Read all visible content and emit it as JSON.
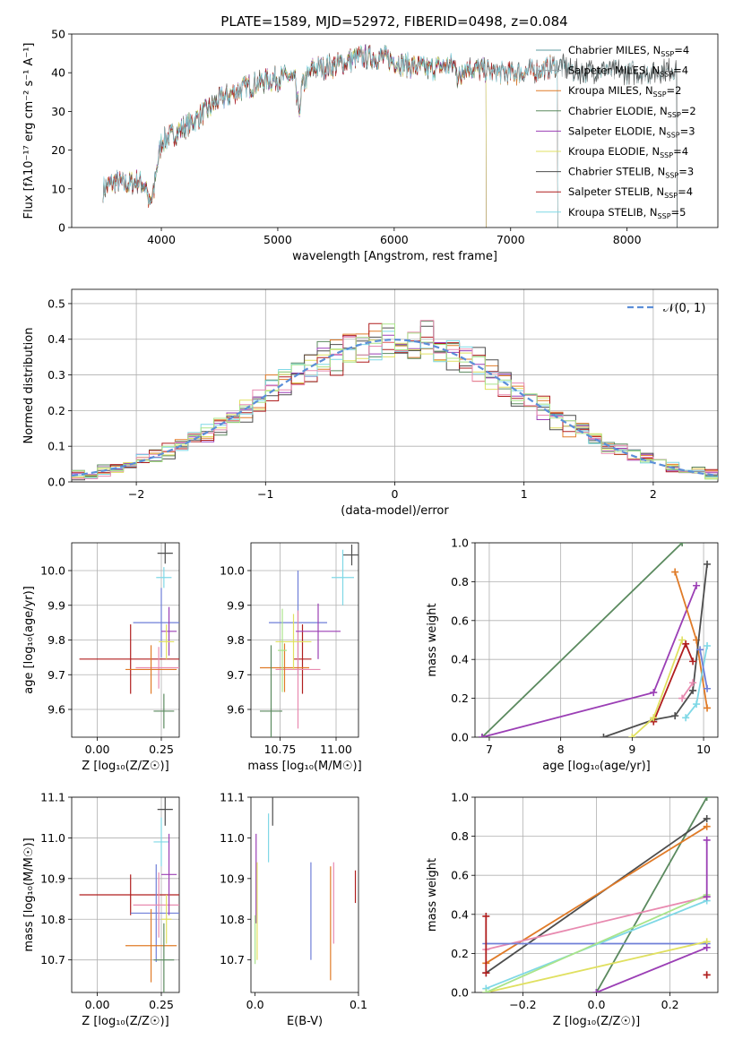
{
  "figure_title": "PLATE=1589, MJD=52972, FIBERID=0498, z=0.084",
  "colors": [
    "#5f9ea0",
    "#9aa3a6",
    "#e07b28",
    "#5b8a5f",
    "#9b3fb5",
    "#e0e060",
    "#4d4d4d",
    "#b01e1e",
    "#7fd8e6"
  ],
  "chart_data": [
    {
      "id": "spectrum",
      "type": "line",
      "title": "PLATE=1589, MJD=52972, FIBERID=0498, z=0.084",
      "xlabel": "wavelength [Angstrom, rest frame]",
      "ylabel": "Flux [fλ10⁻¹⁷ erg cm⁻² s⁻¹ A⁻¹]",
      "xlim": [
        3230,
        8780
      ],
      "ylim": [
        0,
        50
      ],
      "xticks": [
        4000,
        5000,
        6000,
        7000,
        8000
      ],
      "yticks": [
        0,
        10,
        20,
        30,
        40,
        50
      ],
      "grid": false,
      "legend_position": "top-right",
      "continuum_x": [
        3500,
        3600,
        3700,
        3800,
        3900,
        3950,
        4000,
        4100,
        4300,
        4500,
        4700,
        4900,
        5100,
        5200,
        5300,
        5500,
        5700,
        5900,
        6000,
        6100,
        6300,
        6500,
        6700,
        6900,
        7100,
        7300,
        7400,
        7600,
        7800,
        8000,
        8200,
        8400
      ],
      "continuum_y": [
        10,
        12,
        11,
        12,
        10,
        14,
        22,
        24,
        28,
        33,
        36,
        38,
        39,
        36,
        41,
        42,
        44,
        44,
        43,
        42,
        41,
        42,
        41,
        40,
        40,
        41,
        42,
        40,
        41,
        40,
        40,
        41
      ],
      "series": [
        {
          "name": "Chabrier MILES, N",
          "sub": "SSP",
          "suffix": "=4",
          "x_end": 8430
        },
        {
          "name": "Salpeter MILES, N",
          "sub": "SSP",
          "suffix": "=4",
          "x_end": 8430
        },
        {
          "name": "Kroupa MILES, N",
          "sub": "SSP",
          "suffix": "=2",
          "x_end": 7405
        },
        {
          "name": "Chabrier ELODIE, N",
          "sub": "SSP",
          "suffix": "=2",
          "x_end": 6790
        },
        {
          "name": "Salpeter ELODIE, N",
          "sub": "SSP",
          "suffix": "=3",
          "x_end": 6790
        },
        {
          "name": "Kroupa ELODIE, N",
          "sub": "SSP",
          "suffix": "=4",
          "x_end": 6790
        },
        {
          "name": "Chabrier STELIB, N",
          "sub": "SSP",
          "suffix": "=3",
          "x_end": 8430
        },
        {
          "name": "Salpeter STELIB, N",
          "sub": "SSP",
          "suffix": "=4",
          "x_end": 7405
        },
        {
          "name": "Kroupa STELIB, N",
          "sub": "SSP",
          "suffix": "=5",
          "x_end": 7405
        }
      ]
    },
    {
      "id": "residuals",
      "type": "histogram",
      "xlabel": "(data-model)/error",
      "ylabel": "Normed distribution",
      "xlim": [
        -2.5,
        2.5
      ],
      "ylim": [
        0,
        0.54
      ],
      "xticks": [
        -2,
        -1,
        0,
        1,
        2
      ],
      "xtick_labels": [
        "−2",
        "−1",
        "0",
        "1",
        "2"
      ],
      "yticks": [
        0.0,
        0.1,
        0.2,
        0.3,
        0.4,
        0.5
      ],
      "ytick_labels": [
        "0.0",
        "0.1",
        "0.2",
        "0.3",
        "0.4",
        "0.5"
      ],
      "grid": true,
      "bin_width": 0.1,
      "reference_curve": "N(0,1)",
      "legend_position": "top-right",
      "series_colors": [
        "#e07b28",
        "#5b8a5f",
        "#9b3fb5",
        "#e0e060",
        "#4d4d4d",
        "#b01e1e",
        "#7fd8e6",
        "#e88ab0",
        "#a9e48a"
      ]
    },
    {
      "id": "age_vs_Z",
      "type": "errorbar",
      "xlabel": "Z [log₁₀(Z/Z☉)]",
      "ylabel": "age  [log₁₀(age/yr)]",
      "xlim": [
        -0.1,
        0.32
      ],
      "ylim": [
        9.52,
        10.08
      ],
      "xticks": [
        0.0,
        0.25
      ],
      "xtick_labels": [
        "0.00",
        "0.25"
      ],
      "yticks": [
        9.6,
        9.7,
        9.8,
        9.9,
        10.0
      ],
      "ytick_labels": [
        "9.6",
        "9.7",
        "9.8",
        "9.9",
        "10.0"
      ],
      "grid": true,
      "points": [
        {
          "x": 0.265,
          "y": 10.05,
          "xerr": 0.03,
          "yerr": 0.03,
          "color": "#4d4d4d"
        },
        {
          "x": 0.26,
          "y": 9.98,
          "xerr": 0.03,
          "yerr": 0.03,
          "color": "#7fd8e6"
        },
        {
          "x": 0.25,
          "y": 9.85,
          "xerr": 0.11,
          "yerr": 0.1,
          "color": "#6f7fd8"
        },
        {
          "x": 0.13,
          "y": 9.745,
          "xerr": 0.2,
          "yerr": 0.1,
          "color": "#b01e1e"
        },
        {
          "x": 0.24,
          "y": 9.72,
          "xerr": 0.09,
          "yerr": 0.06,
          "color": "#e88ab0"
        },
        {
          "x": 0.21,
          "y": 9.715,
          "xerr": 0.1,
          "yerr": 0.07,
          "color": "#e07b28"
        },
        {
          "x": 0.28,
          "y": 9.825,
          "xerr": 0.03,
          "yerr": 0.07,
          "color": "#9b3fb5"
        },
        {
          "x": 0.27,
          "y": 9.795,
          "xerr": 0.03,
          "yerr": 0.05,
          "color": "#e0e060"
        },
        {
          "x": 0.26,
          "y": 9.595,
          "xerr": 0.04,
          "yerr": 0.05,
          "color": "#5b8a5f"
        }
      ]
    },
    {
      "id": "age_vs_mass",
      "type": "errorbar",
      "xlabel": "mass [log₁₀(M/M☉)]",
      "ylabel": "",
      "xlim": [
        10.62,
        11.1
      ],
      "ylim": [
        9.52,
        10.08
      ],
      "xticks": [
        10.75,
        11.0
      ],
      "xtick_labels": [
        "10.75",
        "11.00"
      ],
      "yticks": [
        9.6,
        9.7,
        9.8,
        9.9,
        10.0
      ],
      "ytick_labels": [
        "9.6",
        "9.7",
        "9.8",
        "9.9",
        "10.0"
      ],
      "grid": true,
      "points": [
        {
          "x": 11.07,
          "y": 10.045,
          "xerr": 0.04,
          "yerr": 0.03,
          "color": "#4d4d4d"
        },
        {
          "x": 11.03,
          "y": 9.98,
          "xerr": 0.05,
          "yerr": 0.08,
          "color": "#7fd8e6"
        },
        {
          "x": 10.83,
          "y": 9.85,
          "xerr": 0.13,
          "yerr": 0.15,
          "color": "#6f7fd8"
        },
        {
          "x": 10.85,
          "y": 9.745,
          "xerr": 0.04,
          "yerr": 0.1,
          "color": "#b01e1e"
        },
        {
          "x": 10.83,
          "y": 9.715,
          "xerr": 0.1,
          "yerr": 0.17,
          "color": "#e88ab0"
        },
        {
          "x": 10.77,
          "y": 9.72,
          "xerr": 0.11,
          "yerr": 0.07,
          "color": "#e07b28"
        },
        {
          "x": 10.92,
          "y": 9.825,
          "xerr": 0.1,
          "yerr": 0.08,
          "color": "#9b3fb5"
        },
        {
          "x": 10.81,
          "y": 9.795,
          "xerr": 0.08,
          "yerr": 0.08,
          "color": "#e0e060"
        },
        {
          "x": 10.71,
          "y": 9.595,
          "xerr": 0.05,
          "yerr": 0.19,
          "color": "#5b8a5f"
        },
        {
          "x": 10.76,
          "y": 9.77,
          "xerr": 0.02,
          "yerr": 0.12,
          "color": "#a9e48a"
        }
      ]
    },
    {
      "id": "weight_vs_age",
      "type": "line",
      "xlabel": "age  [log₁₀(age/yr)]",
      "ylabel": "mass weight",
      "xlim": [
        6.8,
        10.2
      ],
      "ylim": [
        0,
        1.0
      ],
      "xticks": [
        7,
        8,
        9,
        10
      ],
      "xtick_labels": [
        "7",
        "8",
        "9",
        "10"
      ],
      "yticks": [
        0.0,
        0.2,
        0.4,
        0.6,
        0.8,
        1.0
      ],
      "ytick_labels": [
        "0.0",
        "0.2",
        "0.4",
        "0.6",
        "0.8",
        "1.0"
      ],
      "grid": true,
      "series": [
        {
          "color": "#5b8a5f",
          "x": [
            6.9,
            9.7
          ],
          "y": [
            0.0,
            1.0
          ]
        },
        {
          "color": "#9b3fb5",
          "x": [
            6.9,
            9.3,
            9.9
          ],
          "y": [
            0.0,
            0.23,
            0.78
          ]
        },
        {
          "color": "#e07b28",
          "x": [
            9.6,
            9.9,
            10.05
          ],
          "y": [
            0.85,
            0.5,
            0.15
          ]
        },
        {
          "color": "#4d4d4d",
          "x": [
            8.6,
            9.3,
            9.6,
            9.85,
            10.05
          ],
          "y": [
            0.0,
            0.09,
            0.11,
            0.24,
            0.89
          ]
        },
        {
          "color": "#b01e1e",
          "x": [
            9.3,
            9.75,
            9.85
          ],
          "y": [
            0.08,
            0.48,
            0.39
          ]
        },
        {
          "color": "#e0e060",
          "x": [
            9.0,
            9.3,
            9.7
          ],
          "y": [
            0.0,
            0.1,
            0.5
          ]
        },
        {
          "color": "#7fd8e6",
          "x": [
            9.75,
            9.9,
            10.05
          ],
          "y": [
            0.1,
            0.17,
            0.47
          ]
        },
        {
          "color": "#6f7fd8",
          "x": [
            9.95,
            10.05
          ],
          "y": [
            0.45,
            0.25
          ]
        },
        {
          "color": "#e88ab0",
          "x": [
            9.7,
            9.85
          ],
          "y": [
            0.2,
            0.28
          ]
        }
      ]
    },
    {
      "id": "mass_vs_Z",
      "type": "errorbar",
      "xlabel": "Z [log₁₀(Z/Z☉)]",
      "ylabel": "mass [log₁₀(M/M☉)]",
      "xlim": [
        -0.1,
        0.32
      ],
      "ylim": [
        10.62,
        11.1
      ],
      "xticks": [
        0.0,
        0.25
      ],
      "xtick_labels": [
        "0.00",
        "0.25"
      ],
      "yticks": [
        10.7,
        10.8,
        10.9,
        11.0,
        11.1
      ],
      "ytick_labels": [
        "10.7",
        "10.8",
        "10.9",
        "11.0",
        "11.1"
      ],
      "grid": true,
      "points": [
        {
          "x": 0.265,
          "y": 11.07,
          "xerr": 0.03,
          "yerr": 0.04,
          "color": "#4d4d4d"
        },
        {
          "x": 0.25,
          "y": 10.99,
          "xerr": 0.03,
          "yerr": 0.06,
          "color": "#7fd8e6"
        },
        {
          "x": 0.13,
          "y": 10.86,
          "xerr": 0.2,
          "yerr": 0.05,
          "color": "#b01e1e"
        },
        {
          "x": 0.23,
          "y": 10.815,
          "xerr": 0.1,
          "yerr": 0.12,
          "color": "#6f7fd8"
        },
        {
          "x": 0.24,
          "y": 10.835,
          "xerr": 0.1,
          "yerr": 0.08,
          "color": "#e88ab0"
        },
        {
          "x": 0.21,
          "y": 10.735,
          "xerr": 0.1,
          "yerr": 0.09,
          "color": "#e07b28"
        },
        {
          "x": 0.28,
          "y": 10.91,
          "xerr": 0.03,
          "yerr": 0.1,
          "color": "#9b3fb5"
        },
        {
          "x": 0.27,
          "y": 10.8,
          "xerr": 0.02,
          "yerr": 0.06,
          "color": "#e0e060"
        },
        {
          "x": 0.26,
          "y": 10.7,
          "xerr": 0.04,
          "yerr": 0.09,
          "color": "#5b8a5f"
        }
      ]
    },
    {
      "id": "mass_vs_ebv",
      "type": "errorbar",
      "xlabel": "E(B-V)",
      "ylabel": "",
      "xlim": [
        -0.004,
        0.1
      ],
      "ylim": [
        10.62,
        11.1
      ],
      "xticks": [
        0.0,
        0.1
      ],
      "xtick_labels": [
        "0.0",
        "0.1"
      ],
      "yticks": [
        10.7,
        10.8,
        10.9,
        11.0,
        11.1
      ],
      "ytick_labels": [
        "10.7",
        "10.8",
        "10.9",
        "11.0",
        "11.1"
      ],
      "grid": false,
      "points": [
        {
          "x": 0.017,
          "y": 11.07,
          "xerr": 0,
          "yerr": 0.04,
          "color": "#4d4d4d"
        },
        {
          "x": 0.013,
          "y": 11.0,
          "xerr": 0,
          "yerr": 0.06,
          "color": "#7fd8e6"
        },
        {
          "x": 0.001,
          "y": 10.9,
          "xerr": 0,
          "yerr": 0.11,
          "color": "#9b3fb5"
        },
        {
          "x": 0.002,
          "y": 10.82,
          "xerr": 0,
          "yerr": 0.12,
          "color": "#e0e060"
        },
        {
          "x": 0.0,
          "y": 10.75,
          "xerr": 0,
          "yerr": 0.06,
          "color": "#a9e48a"
        },
        {
          "x": 0.054,
          "y": 10.82,
          "xerr": 0,
          "yerr": 0.12,
          "color": "#6f7fd8"
        },
        {
          "x": 0.073,
          "y": 10.79,
          "xerr": 0,
          "yerr": 0.14,
          "color": "#e07b28"
        },
        {
          "x": 0.076,
          "y": 10.84,
          "xerr": 0,
          "yerr": 0.1,
          "color": "#e88ab0"
        },
        {
          "x": 0.097,
          "y": 10.88,
          "xerr": 0,
          "yerr": 0.04,
          "color": "#b01e1e"
        }
      ]
    },
    {
      "id": "weight_vs_Z",
      "type": "line",
      "xlabel": "Z [log₁₀(Z/Z☉)]",
      "ylabel": "mass weight",
      "xlim": [
        -0.33,
        0.33
      ],
      "ylim": [
        0,
        1.0
      ],
      "xticks": [
        -0.2,
        0.0,
        0.2
      ],
      "xtick_labels": [
        "−0.2",
        "0.0",
        "0.2"
      ],
      "yticks": [
        0.0,
        0.2,
        0.4,
        0.6,
        0.8,
        1.0
      ],
      "ytick_labels": [
        "0.0",
        "0.2",
        "0.4",
        "0.6",
        "0.8",
        "1.0"
      ],
      "grid": true,
      "series": [
        {
          "color": "#5b8a5f",
          "x": [
            0.0,
            0.3
          ],
          "y": [
            0.0,
            1.0
          ]
        },
        {
          "color": "#4d4d4d",
          "x": [
            -0.3,
            0.3
          ],
          "y": [
            0.1,
            0.89
          ]
        },
        {
          "color": "#e07b28",
          "x": [
            -0.3,
            0.3
          ],
          "y": [
            0.15,
            0.85
          ]
        },
        {
          "color": "#e88ab0",
          "x": [
            -0.3,
            0.3
          ],
          "y": [
            0.22,
            0.49
          ]
        },
        {
          "color": "#6f7fd8",
          "x": [
            -0.3,
            0.3
          ],
          "y": [
            0.25,
            0.25
          ]
        },
        {
          "color": "#e0e060",
          "x": [
            -0.3,
            0.3
          ],
          "y": [
            0.0,
            0.26
          ]
        },
        {
          "color": "#7fd8e6",
          "x": [
            -0.3,
            0.3
          ],
          "y": [
            0.02,
            0.47
          ]
        },
        {
          "color": "#a9e48a",
          "x": [
            -0.3,
            0.3
          ],
          "y": [
            0.0,
            0.5
          ]
        },
        {
          "color": "#9b3fb5",
          "x": [
            0.0,
            0.3
          ],
          "y": [
            0.0,
            0.23
          ]
        },
        {
          "color": "#b01e1e",
          "x": [
            -0.3,
            -0.3
          ],
          "y": [
            0.1,
            0.39
          ]
        },
        {
          "color": "#9b3fb5",
          "x": [
            0.3,
            0.3
          ],
          "y": [
            0.49,
            0.78
          ]
        },
        {
          "color": "#b01e1e",
          "x": [
            0.3,
            0.3
          ],
          "y": [
            0.09,
            0.09
          ]
        }
      ]
    }
  ]
}
